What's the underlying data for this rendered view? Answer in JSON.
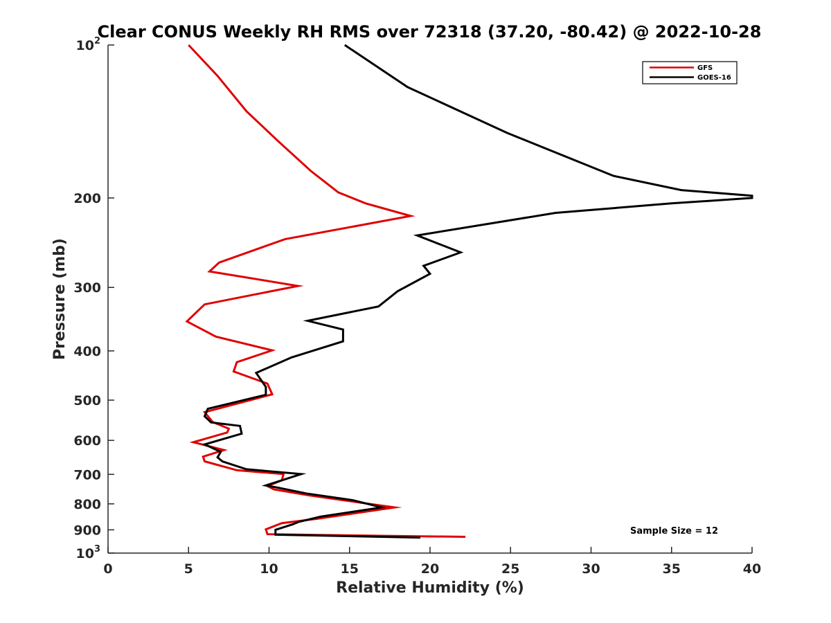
{
  "chart_data": {
    "type": "line",
    "title": "Clear CONUS Weekly RH RMS over 72318 (37.20, -80.42) @ 2022-10-28",
    "xlabel": "Relative Humidity (%)",
    "ylabel": "Pressure (mb)",
    "xlim": [
      0,
      40
    ],
    "ylim": [
      100,
      1000
    ],
    "y_scale": "log",
    "y_reversed": true,
    "x_ticks": [
      0,
      5,
      10,
      15,
      20,
      25,
      30,
      35,
      40
    ],
    "y_ticks": [
      {
        "value": 100,
        "label": "10",
        "exp": "2"
      },
      {
        "value": 200,
        "label": "200",
        "exp": ""
      },
      {
        "value": 300,
        "label": "300",
        "exp": ""
      },
      {
        "value": 400,
        "label": "400",
        "exp": ""
      },
      {
        "value": 500,
        "label": "500",
        "exp": ""
      },
      {
        "value": 600,
        "label": "600",
        "exp": ""
      },
      {
        "value": 700,
        "label": "700",
        "exp": ""
      },
      {
        "value": 800,
        "label": "800",
        "exp": ""
      },
      {
        "value": 900,
        "label": "900",
        "exp": ""
      },
      {
        "value": 1000,
        "label": "10",
        "exp": "3"
      }
    ],
    "grid": false,
    "legend_position": "top-right",
    "annotation": "Sample Size = 12",
    "series": [
      {
        "name": "GFS",
        "color": "#e00000",
        "points": [
          [
            5.0,
            100
          ],
          [
            6.8,
            115
          ],
          [
            8.6,
            135
          ],
          [
            10.6,
            155
          ],
          [
            12.6,
            177
          ],
          [
            14.3,
            195
          ],
          [
            16.0,
            205
          ],
          [
            18.8,
            217
          ],
          [
            11.0,
            241
          ],
          [
            6.9,
            268
          ],
          [
            6.3,
            279
          ],
          [
            11.8,
            298
          ],
          [
            6.0,
            324
          ],
          [
            4.9,
            350
          ],
          [
            6.7,
            375
          ],
          [
            10.2,
            399
          ],
          [
            8.0,
            421
          ],
          [
            7.8,
            439
          ],
          [
            9.9,
            464
          ],
          [
            10.2,
            487
          ],
          [
            6.0,
            528
          ],
          [
            6.5,
            552
          ],
          [
            7.5,
            569
          ],
          [
            7.4,
            579
          ],
          [
            5.3,
            605
          ],
          [
            7.2,
            627
          ],
          [
            5.9,
            646
          ],
          [
            6.0,
            660
          ],
          [
            8.0,
            687
          ],
          [
            10.9,
            699
          ],
          [
            10.8,
            719
          ],
          [
            9.9,
            738
          ],
          [
            10.3,
            749
          ],
          [
            12.5,
            770
          ],
          [
            15.0,
            790
          ],
          [
            17.8,
            813
          ],
          [
            13.0,
            856
          ],
          [
            10.8,
            873
          ],
          [
            9.8,
            898
          ],
          [
            9.9,
            918
          ],
          [
            16.0,
            924
          ],
          [
            22.2,
            929
          ]
        ]
      },
      {
        "name": "GOES-16",
        "color": "#000000",
        "points": [
          [
            14.7,
            100
          ],
          [
            18.6,
            121
          ],
          [
            24.8,
            149
          ],
          [
            31.4,
            181
          ],
          [
            35.6,
            193
          ],
          [
            40.0,
            198
          ],
          [
            40.0,
            200
          ],
          [
            35.0,
            205
          ],
          [
            27.8,
            214
          ],
          [
            19.2,
            237
          ],
          [
            21.9,
            256
          ],
          [
            19.6,
            272
          ],
          [
            20.0,
            282
          ],
          [
            18.0,
            305
          ],
          [
            16.8,
            327
          ],
          [
            12.4,
            349
          ],
          [
            14.6,
            363
          ],
          [
            14.6,
            383
          ],
          [
            11.4,
            412
          ],
          [
            9.2,
            442
          ],
          [
            9.8,
            471
          ],
          [
            9.8,
            488
          ],
          [
            6.2,
            520
          ],
          [
            6.0,
            538
          ],
          [
            6.4,
            553
          ],
          [
            8.2,
            562
          ],
          [
            8.3,
            582
          ],
          [
            6.0,
            611
          ],
          [
            7.0,
            632
          ],
          [
            6.8,
            648
          ],
          [
            7.1,
            660
          ],
          [
            8.6,
            684
          ],
          [
            12.0,
            699
          ],
          [
            10.8,
            719
          ],
          [
            9.8,
            736
          ],
          [
            10.6,
            744
          ],
          [
            12.3,
            763
          ],
          [
            15.2,
            787
          ],
          [
            17.0,
            813
          ],
          [
            13.2,
            848
          ],
          [
            11.8,
            869
          ],
          [
            11.5,
            877
          ],
          [
            10.4,
            900
          ],
          [
            10.4,
            920
          ],
          [
            19.4,
            932
          ]
        ]
      }
    ]
  }
}
